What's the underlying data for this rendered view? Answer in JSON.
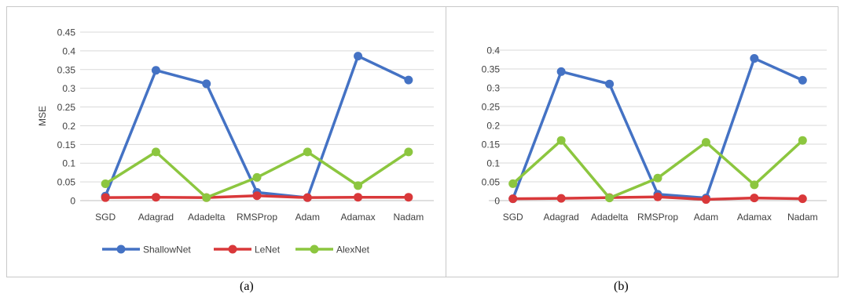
{
  "captions": [
    "(a)",
    "(b)"
  ],
  "legend": [
    {
      "name": "ShallowNet",
      "color": "#4472c4"
    },
    {
      "name": "LeNet",
      "color": "#d9383a"
    },
    {
      "name": "AlexNet",
      "color": "#8cc63f"
    }
  ],
  "chart_data": [
    {
      "type": "line",
      "panel": "(a)",
      "categories": [
        "SGD",
        "Adagrad",
        "Adadelta",
        "RMSProp",
        "Adam",
        "Adamax",
        "Nadam"
      ],
      "ylabel": "MSE",
      "xlabel": "",
      "ylim": [
        0,
        0.45
      ],
      "yticks": [
        "0",
        "0.05",
        "0.1",
        "0.15",
        "0.2",
        "0.25",
        "0.3",
        "0.35",
        "0.4",
        "0.45"
      ],
      "grid": true,
      "legend_position": "bottom",
      "series": [
        {
          "name": "ShallowNet",
          "color": "#4472c4",
          "values": [
            0.012,
            0.348,
            0.312,
            0.022,
            0.008,
            0.386,
            0.322
          ]
        },
        {
          "name": "LeNet",
          "color": "#d9383a",
          "values": [
            0.008,
            0.009,
            0.008,
            0.013,
            0.008,
            0.009,
            0.009
          ]
        },
        {
          "name": "AlexNet",
          "color": "#8cc63f",
          "values": [
            0.045,
            0.13,
            0.008,
            0.062,
            0.13,
            0.04,
            0.13
          ]
        }
      ]
    },
    {
      "type": "line",
      "panel": "(b)",
      "categories": [
        "SGD",
        "Adagrad",
        "Adadelta",
        "RMSProp",
        "Adam",
        "Adamax",
        "Nadam"
      ],
      "ylabel": "",
      "xlabel": "",
      "ylim": [
        0,
        0.4
      ],
      "yticks": [
        "0",
        "0.05",
        "0.1",
        "0.15",
        "0.2",
        "0.25",
        "0.3",
        "0.35",
        "0.4"
      ],
      "grid": true,
      "legend_position": "none",
      "series": [
        {
          "name": "ShallowNet",
          "color": "#4472c4",
          "values": [
            0.005,
            0.343,
            0.31,
            0.017,
            0.007,
            0.378,
            0.32
          ]
        },
        {
          "name": "LeNet",
          "color": "#d9383a",
          "values": [
            0.005,
            0.006,
            0.008,
            0.01,
            0.003,
            0.007,
            0.005
          ]
        },
        {
          "name": "AlexNet",
          "color": "#8cc63f",
          "values": [
            0.045,
            0.16,
            0.007,
            0.06,
            0.155,
            0.042,
            0.16
          ]
        }
      ]
    }
  ]
}
